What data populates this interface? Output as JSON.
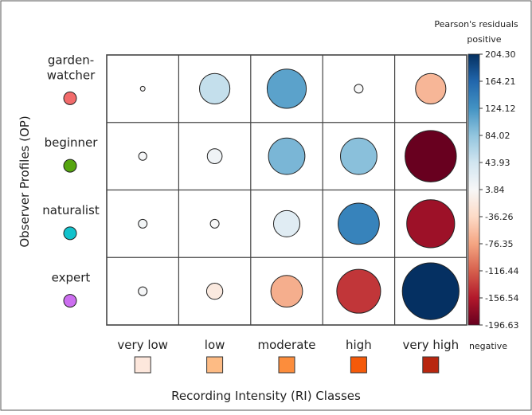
{
  "chart_data": {
    "type": "balloon",
    "xlabel": "Recording Intensity (RI) Classes",
    "ylabel": "Observer Profiles (OP)",
    "categories_x": [
      "very low",
      "low",
      "moderate",
      "high",
      "very high"
    ],
    "x_swatch_colors": [
      "#fde7dc",
      "#fdbb84",
      "#fc8d3c",
      "#f55a0a",
      "#b8260f"
    ],
    "categories_y": [
      {
        "label": [
          "garden-",
          "watcher"
        ],
        "color": "#f26b6b"
      },
      {
        "label": [
          "beginner"
        ],
        "color": "#55a50f"
      },
      {
        "label": [
          "naturalist"
        ],
        "color": "#12c2cc"
      },
      {
        "label": [
          "expert"
        ],
        "color": "#cc6ef0"
      }
    ],
    "residuals": [
      [
        1,
        52,
        112,
        4,
        -64
      ],
      [
        6,
        12,
        96,
        88,
        -196
      ],
      [
        9,
        4,
        28,
        138,
        -168
      ],
      [
        6,
        -16,
        -70,
        -140,
        204
      ]
    ],
    "size_magnitude": [
      [
        0.07,
        0.45,
        0.58,
        0.13,
        0.45
      ],
      [
        0.12,
        0.22,
        0.54,
        0.54,
        0.76
      ],
      [
        0.13,
        0.13,
        0.39,
        0.61,
        0.71
      ],
      [
        0.13,
        0.24,
        0.47,
        0.65,
        0.84
      ]
    ],
    "colorbar": {
      "title": "Pearson's residuals",
      "top_label": "positive",
      "bottom_label": "negative",
      "ticks": [
        "204.30",
        "164.21",
        "124.12",
        "84.02",
        "43.93",
        "3.84",
        "-36.26",
        "-76.35",
        "-116.44",
        "-156.54",
        "-196.63"
      ],
      "vmin": -196.63,
      "vmax": 204.3,
      "colors": [
        "#67001f",
        "#b2182b",
        "#d6604d",
        "#f4a582",
        "#fddbc7",
        "#f7f7f7",
        "#d1e5f0",
        "#92c5de",
        "#4393c3",
        "#2166ac",
        "#053061"
      ]
    }
  }
}
